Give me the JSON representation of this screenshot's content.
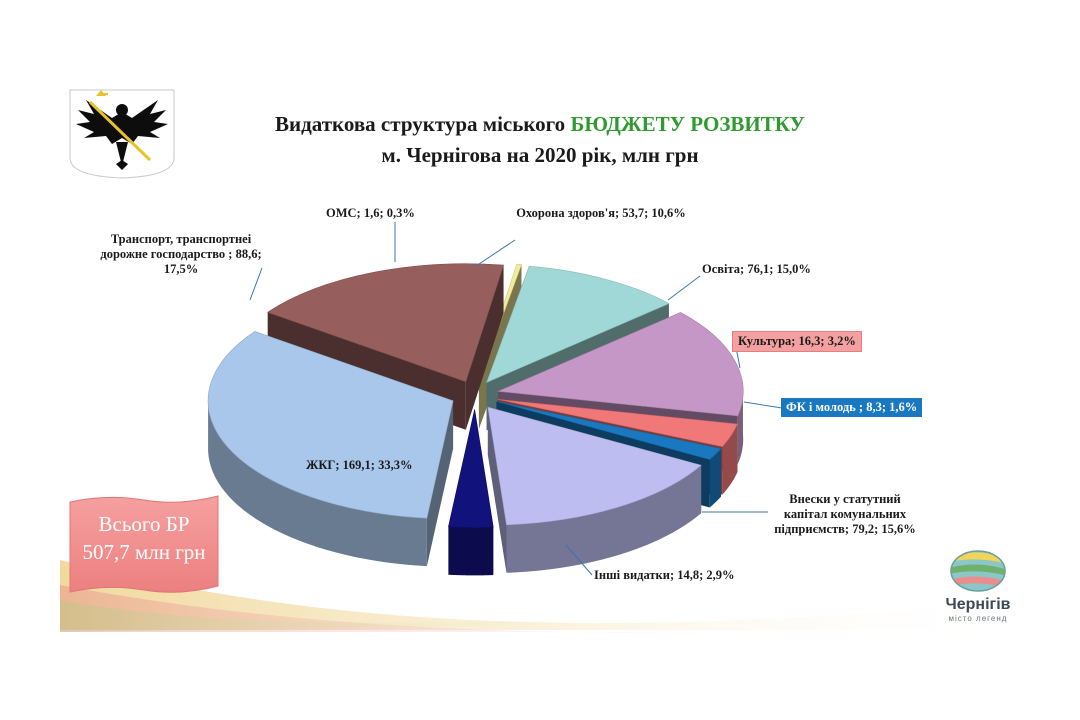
{
  "title_line1": "Видаткова структура міського",
  "title_accent": "БЮДЖЕТУ РОЗВИТКУ",
  "title_line2": "м. Чернігова на 2020 рік, млн грн",
  "total_label_line1": "Всього БР",
  "total_label_line2": "507,7 млн грн",
  "logo_name": "Чернігів",
  "logo_tagline": "місто легенд",
  "emblem_icon": "chernihiv-eagle-coat-of-arms-icon",
  "chart_data": {
    "type": "pie",
    "slices": [
      {
        "label": "Охорона здоров'я",
        "value": 53.7,
        "percent": 10.6,
        "color": "#9fd8d6",
        "label_text": "Охорона  здоров'я;  53,7; 10,6%"
      },
      {
        "label": "Освіта",
        "value": 76.1,
        "percent": 15.0,
        "color": "#c597c6",
        "label_text": "Освіта; 76,1; 15,0%"
      },
      {
        "label": "Культура",
        "value": 16.3,
        "percent": 3.2,
        "color": "#f07878",
        "label_text": "Культура; 16,3; 3,2%"
      },
      {
        "label": "ФК і молодь",
        "value": 8.3,
        "percent": 1.6,
        "color": "#1a78c0",
        "label_text": "ФК і молодь ; 8,3; 1,6%"
      },
      {
        "label": "Внески у статутний капітал комунальних підприємств",
        "value": 79.2,
        "percent": 15.6,
        "color": "#bdbdf2",
        "label_text": "Внески у статутний капітал комунальних підприємств; 79,2; 15,6%"
      },
      {
        "label": "Інші видатки",
        "value": 14.8,
        "percent": 2.9,
        "color": "#12127c",
        "label_text": "Інші видатки; 14,8; 2,9%"
      },
      {
        "label": "ЖКГ",
        "value": 169.1,
        "percent": 33.3,
        "color": "#a9c7ea",
        "label_text": "ЖКГ; 169,1; 33,3%"
      },
      {
        "label": "Транспорт, транспортнеі дорожне господарство",
        "value": 88.6,
        "percent": 17.5,
        "color": "#965e5c",
        "label_text": "Транспорт, транспортнеі дорожне господарство ; 88,6; 17,5%"
      },
      {
        "label": "ОМС",
        "value": 1.6,
        "percent": 0.3,
        "color": "#f2ec9a",
        "label_text": "ОМС; 1,6; 0,3%"
      }
    ]
  }
}
